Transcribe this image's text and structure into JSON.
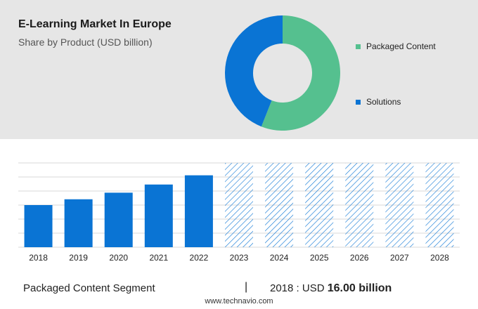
{
  "header": {
    "title": "E-Learning Market In Europe",
    "subtitle": "Share by Product (USD billion)"
  },
  "colors": {
    "packaged": "#55c08f",
    "solutions": "#0a74d4",
    "hatch": "#0a74d4",
    "grid": "#d9d9d9"
  },
  "chart_data": [
    {
      "type": "pie",
      "donut": true,
      "categories": [
        "Packaged Content",
        "Solutions"
      ],
      "values": [
        56,
        44
      ],
      "colors": [
        "#55c08f",
        "#0a74d4"
      ],
      "legend_placement": "right"
    },
    {
      "type": "bar",
      "categories": [
        "2018",
        "2019",
        "2020",
        "2021",
        "2022",
        "2023",
        "2024",
        "2025",
        "2026",
        "2027",
        "2028"
      ],
      "values": [
        16.0,
        18.2,
        20.7,
        23.8,
        27.3,
        null,
        null,
        null,
        null,
        null,
        null
      ],
      "forecast_years": [
        "2023",
        "2024",
        "2025",
        "2026",
        "2027",
        "2028"
      ],
      "forecast_height": 32,
      "ylim": [
        0,
        32
      ],
      "grid": true
    }
  ],
  "footer": {
    "segment": "Packaged Content Segment",
    "separator": "|",
    "year_prefix": "2018 : USD",
    "year_value": "16.00 billion",
    "source": "www.technavio.com"
  }
}
